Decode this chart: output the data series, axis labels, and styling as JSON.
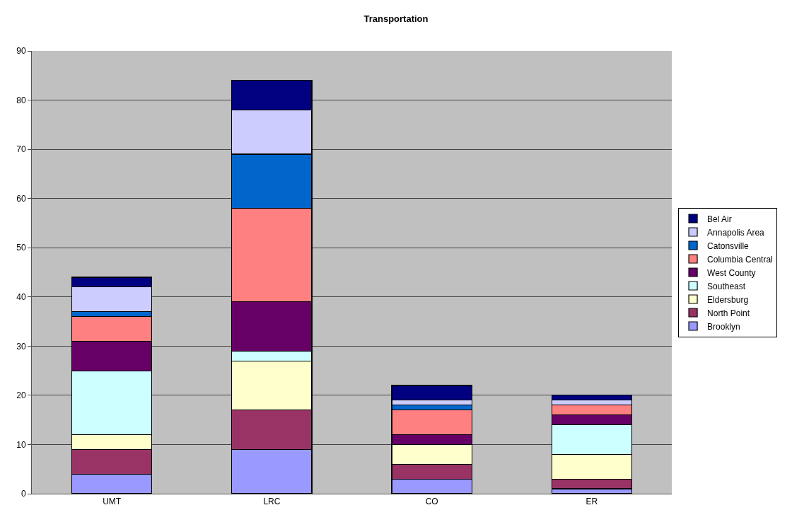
{
  "chart_data": {
    "type": "bar",
    "title": "Transportation",
    "stacked": true,
    "categories": [
      "UMT",
      "LRC",
      "CO",
      "ER"
    ],
    "series": [
      {
        "name": "Brooklyn",
        "color": "#9999ff",
        "values": [
          4,
          9,
          3,
          1
        ]
      },
      {
        "name": "North Point",
        "color": "#993366",
        "values": [
          5,
          8,
          3,
          2
        ]
      },
      {
        "name": "Eldersburg",
        "color": "#ffffcc",
        "values": [
          3,
          10,
          4,
          5
        ]
      },
      {
        "name": "Southeast",
        "color": "#ccffff",
        "values": [
          13,
          2,
          0,
          6
        ]
      },
      {
        "name": "West County",
        "color": "#660066",
        "values": [
          6,
          10,
          2,
          2
        ]
      },
      {
        "name": "Columbia Central",
        "color": "#ff8080",
        "values": [
          5,
          19,
          5,
          2
        ]
      },
      {
        "name": "Catonsville",
        "color": "#0066cc",
        "values": [
          1,
          11,
          1,
          0
        ]
      },
      {
        "name": "Annapolis Area",
        "color": "#ccccff",
        "values": [
          5,
          9,
          1,
          1
        ]
      },
      {
        "name": "Bel Air",
        "color": "#000080",
        "values": [
          2,
          6,
          3,
          1
        ]
      }
    ],
    "ylim": [
      0,
      90
    ],
    "yticks": [
      0,
      10,
      20,
      30,
      40,
      50,
      60,
      70,
      80,
      90
    ],
    "grid": "y",
    "legend": "right"
  }
}
